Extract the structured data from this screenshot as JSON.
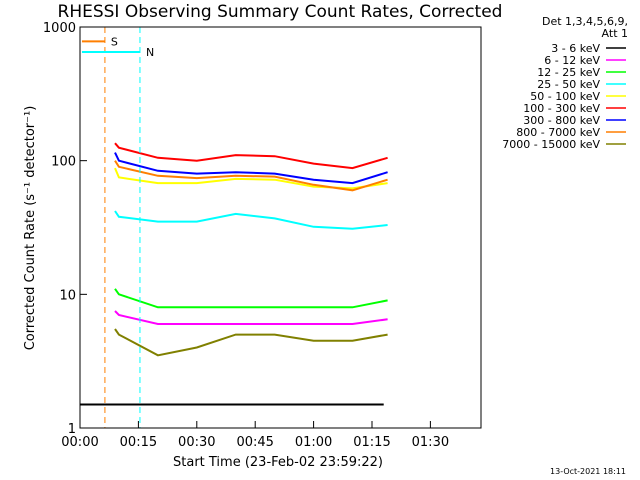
{
  "chart_data": {
    "type": "line",
    "title": "RHESSI Observing Summary Count Rates, Corrected",
    "xlabel": "Start Time (23-Feb-02 23:59:22)",
    "ylabel": "Corrected Count Rate (s⁻¹ detector⁻¹)",
    "yscale": "log",
    "ylim": [
      1,
      1000
    ],
    "xlim_minutes": [
      0,
      103
    ],
    "x_tick_labels": [
      "00:00",
      "00:15",
      "00:30",
      "00:45",
      "01:00",
      "01:15",
      "01:30"
    ],
    "x_tick_minutes": [
      0,
      15,
      30,
      45,
      60,
      75,
      90
    ],
    "y_tick_labels": [
      "1",
      "10",
      "100",
      "1000"
    ],
    "y_tick_values": [
      1,
      10,
      100,
      1000
    ],
    "legend_header": [
      "Det 1,3,4,5,6,9,",
      "Att 1"
    ],
    "legend_position": "right",
    "flags": [
      {
        "label": "S",
        "color": "#ff7f00",
        "x_minutes": [
          0.5,
          6.4
        ],
        "level": 780
      },
      {
        "label": "N",
        "color": "#00ffff",
        "x_minutes": [
          0.5,
          15.4
        ],
        "level": 650
      }
    ],
    "series": [
      {
        "name": "3 - 6 keV",
        "color": "#000000",
        "x": [
          0,
          10,
          20,
          30,
          40,
          50,
          60,
          70,
          78
        ],
        "values": [
          1.5,
          1.5,
          1.5,
          1.5,
          1.5,
          1.5,
          1.5,
          1.5,
          1.5
        ]
      },
      {
        "name": "6 - 12 keV",
        "color": "#ff00ff",
        "x": [
          9,
          10,
          20,
          30,
          40,
          50,
          60,
          70,
          79
        ],
        "values": [
          7.5,
          7,
          6,
          6,
          6,
          6,
          6,
          6,
          6.5
        ]
      },
      {
        "name": "12 - 25 keV",
        "color": "#00ff00",
        "x": [
          9,
          10,
          20,
          30,
          40,
          50,
          60,
          70,
          79
        ],
        "values": [
          11,
          10,
          8,
          8,
          8,
          8,
          8,
          8,
          9
        ]
      },
      {
        "name": "25 - 50 keV",
        "color": "#00ffff",
        "x": [
          9,
          10,
          20,
          30,
          40,
          50,
          60,
          70,
          79
        ],
        "values": [
          42,
          38,
          35,
          35,
          40,
          37,
          32,
          31,
          33
        ]
      },
      {
        "name": "50 - 100 keV",
        "color": "#ffff00",
        "x": [
          9,
          10,
          20,
          30,
          40,
          50,
          60,
          70,
          79
        ],
        "values": [
          88,
          75,
          68,
          68,
          73,
          72,
          64,
          62,
          68
        ]
      },
      {
        "name": "100 - 300 keV",
        "color": "#ff0000",
        "x": [
          9,
          10,
          20,
          30,
          40,
          50,
          60,
          70,
          79
        ],
        "values": [
          135,
          125,
          105,
          100,
          110,
          108,
          95,
          88,
          105
        ]
      },
      {
        "name": "300 - 800 keV",
        "color": "#0000ff",
        "x": [
          9,
          10,
          20,
          30,
          40,
          50,
          60,
          70,
          79
        ],
        "values": [
          115,
          100,
          84,
          80,
          82,
          80,
          72,
          68,
          82
        ]
      },
      {
        "name": "800 - 7000 keV",
        "color": "#ff7f00",
        "x": [
          9,
          10,
          20,
          30,
          40,
          50,
          60,
          70,
          79
        ],
        "values": [
          100,
          90,
          77,
          74,
          77,
          76,
          66,
          60,
          72
        ]
      },
      {
        "name": "7000 - 15000 keV",
        "color": "#808000",
        "x": [
          9,
          10,
          20,
          30,
          40,
          50,
          60,
          70,
          79
        ],
        "values": [
          5.5,
          5,
          3.5,
          4,
          5,
          5,
          4.5,
          4.5,
          5
        ]
      }
    ]
  },
  "footer": {
    "date": "13-Oct-2021 18:11"
  }
}
